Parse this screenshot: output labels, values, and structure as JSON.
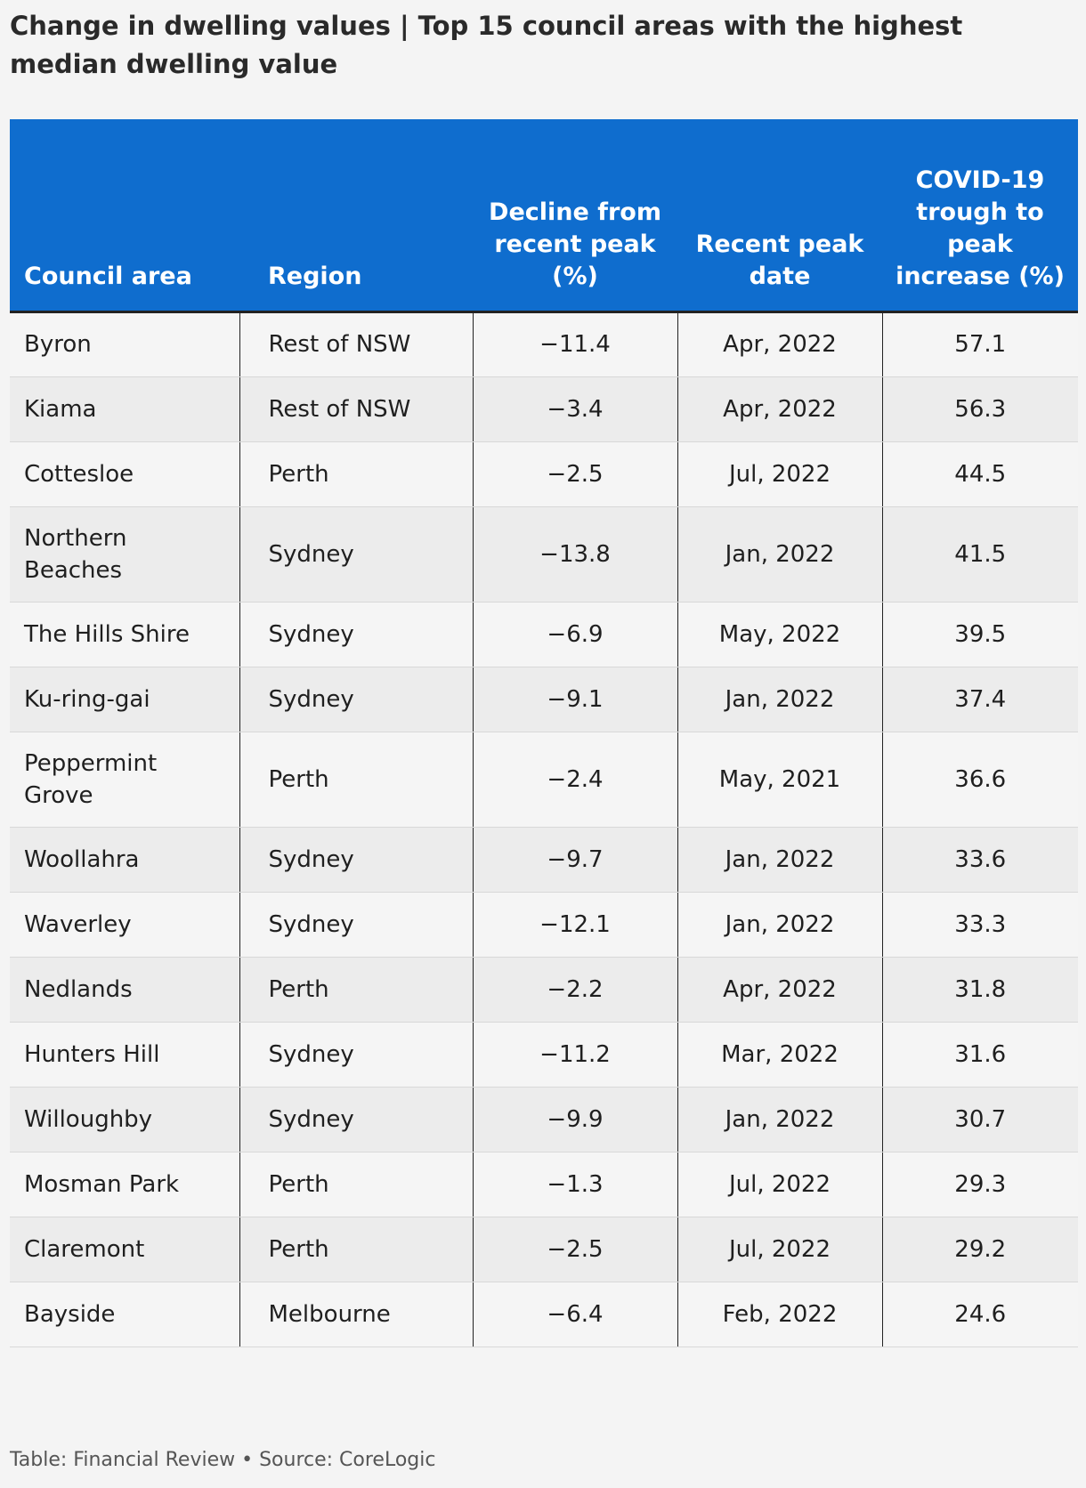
{
  "chart_data": {
    "type": "table",
    "title": "Change in dwelling values | Top 15 council areas with the highest median dwelling value",
    "columns": [
      "Council area",
      "Region",
      "Decline from recent peak (%)",
      "Recent peak date",
      "COVID-19 trough to peak increase (%)"
    ],
    "rows": [
      [
        "Byron",
        "Rest of NSW",
        "−11.4",
        "Apr, 2022",
        "57.1"
      ],
      [
        "Kiama",
        "Rest of NSW",
        "−3.4",
        "Apr, 2022",
        "56.3"
      ],
      [
        "Cottesloe",
        "Perth",
        "−2.5",
        "Jul, 2022",
        "44.5"
      ],
      [
        "Northern Beaches",
        "Sydney",
        "−13.8",
        "Jan, 2022",
        "41.5"
      ],
      [
        "The Hills Shire",
        "Sydney",
        "−6.9",
        "May, 2022",
        "39.5"
      ],
      [
        "Ku-ring-gai",
        "Sydney",
        "−9.1",
        "Jan, 2022",
        "37.4"
      ],
      [
        "Peppermint Grove",
        "Perth",
        "−2.4",
        "May, 2021",
        "36.6"
      ],
      [
        "Woollahra",
        "Sydney",
        "−9.7",
        "Jan, 2022",
        "33.6"
      ],
      [
        "Waverley",
        "Sydney",
        "−12.1",
        "Jan, 2022",
        "33.3"
      ],
      [
        "Nedlands",
        "Perth",
        "−2.2",
        "Apr, 2022",
        "31.8"
      ],
      [
        "Hunters Hill",
        "Sydney",
        "−11.2",
        "Mar, 2022",
        "31.6"
      ],
      [
        "Willoughby",
        "Sydney",
        "−9.9",
        "Jan, 2022",
        "30.7"
      ],
      [
        "Mosman Park",
        "Perth",
        "−1.3",
        "Jul, 2022",
        "29.3"
      ],
      [
        "Claremont",
        "Perth",
        "−2.5",
        "Jul, 2022",
        "29.2"
      ],
      [
        "Bayside",
        "Melbourne",
        "−6.4",
        "Feb, 2022",
        "24.6"
      ]
    ],
    "footer": "Table: Financial Review • Source: CoreLogic"
  },
  "colors": {
    "header_bg": "#0f6dce",
    "header_text": "#ffffff",
    "row_light": "#f5f5f5",
    "row_dark": "#ececec"
  }
}
